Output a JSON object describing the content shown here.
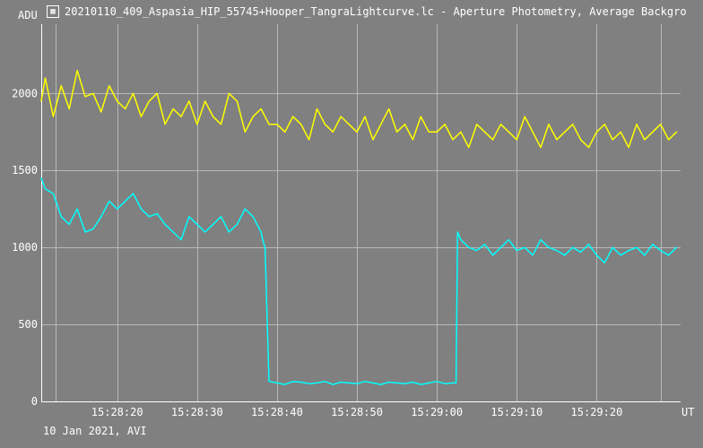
{
  "window": {
    "title": "20210110_409_Aspasia_HIP_55745+Hooper_TangraLightcurve.lc - Aperture Photometry, Average Backgro",
    "icon": "tangra-app-icon"
  },
  "footer": {
    "date_label": "10 Jan 2021, AVI"
  },
  "chart_data": {
    "type": "line",
    "title": "",
    "ylabel": "ADU",
    "xlabel": "UT",
    "ylim": [
      0,
      2450
    ],
    "xlim": [
      "15:28:10.5",
      "15:29:30.5"
    ],
    "y_ticks": [
      0,
      500,
      1000,
      1500,
      2000
    ],
    "y_tick_labels": [
      "0",
      "500",
      "1000",
      "1500",
      "2000"
    ],
    "x_ticks": [
      "15:28:20",
      "15:28:30",
      "15:28:40",
      "15:28:50",
      "15:29:00",
      "15:29:10",
      "15:29:20"
    ],
    "x_tick_labels": [
      "15:28:20",
      "15:28:30",
      "15:28:40",
      "15:28:50",
      "15:29:00",
      "15:29:10",
      "15:29:20"
    ],
    "grid": true,
    "colors": {
      "background": "#808080",
      "grid": "#b8b8b8",
      "axis": "#ffffff",
      "text": "#ffffff"
    },
    "series": [
      {
        "color": "#ffff00",
        "x": [
          "15:28:10.5",
          "15:28:11",
          "15:28:12",
          "15:28:13",
          "15:28:14",
          "15:28:15",
          "15:28:16",
          "15:28:17",
          "15:28:18",
          "15:28:19",
          "15:28:20",
          "15:28:21",
          "15:28:22",
          "15:28:23",
          "15:28:24",
          "15:28:25",
          "15:28:26",
          "15:28:27",
          "15:28:28",
          "15:28:29",
          "15:28:30",
          "15:28:31",
          "15:28:32",
          "15:28:33",
          "15:28:34",
          "15:28:35",
          "15:28:36",
          "15:28:37",
          "15:28:38",
          "15:28:39",
          "15:28:40",
          "15:28:41",
          "15:28:42",
          "15:28:43",
          "15:28:44",
          "15:28:45",
          "15:28:46",
          "15:28:47",
          "15:28:48",
          "15:28:49",
          "15:28:50",
          "15:28:51",
          "15:28:52",
          "15:28:53",
          "15:28:54",
          "15:28:55",
          "15:28:56",
          "15:28:57",
          "15:28:58",
          "15:28:59",
          "15:29:00",
          "15:29:01",
          "15:29:02",
          "15:29:03",
          "15:29:04",
          "15:29:05",
          "15:29:06",
          "15:29:07",
          "15:29:08",
          "15:29:09",
          "15:29:10",
          "15:29:11",
          "15:29:12",
          "15:29:13",
          "15:29:14",
          "15:29:15",
          "15:29:16",
          "15:29:17",
          "15:29:18",
          "15:29:19",
          "15:29:20",
          "15:29:21",
          "15:29:22",
          "15:29:23",
          "15:29:24",
          "15:29:25",
          "15:29:26",
          "15:29:27",
          "15:29:28",
          "15:29:29",
          "15:29:30"
        ],
        "values": [
          1950,
          2100,
          1850,
          2050,
          1900,
          2150,
          1980,
          2000,
          1880,
          2050,
          1950,
          1900,
          2000,
          1850,
          1950,
          2000,
          1800,
          1900,
          1850,
          1950,
          1800,
          1950,
          1850,
          1800,
          2000,
          1950,
          1750,
          1850,
          1900,
          1800,
          1800,
          1750,
          1850,
          1800,
          1700,
          1900,
          1800,
          1750,
          1850,
          1800,
          1750,
          1850,
          1700,
          1800,
          1900,
          1750,
          1800,
          1700,
          1850,
          1750,
          1750,
          1800,
          1700,
          1750,
          1650,
          1800,
          1750,
          1700,
          1800,
          1750,
          1700,
          1850,
          1750,
          1650,
          1800,
          1700,
          1750,
          1800,
          1700,
          1650,
          1750,
          1800,
          1700,
          1750,
          1650,
          1800,
          1700,
          1750,
          1800,
          1700,
          1750
        ]
      },
      {
        "color": "#00ffff",
        "x": [
          "15:28:10.5",
          "15:28:11",
          "15:28:12",
          "15:28:13",
          "15:28:14",
          "15:28:15",
          "15:28:16",
          "15:28:17",
          "15:28:18",
          "15:28:19",
          "15:28:20",
          "15:28:21",
          "15:28:22",
          "15:28:23",
          "15:28:24",
          "15:28:25",
          "15:28:26",
          "15:28:27",
          "15:28:28",
          "15:28:29",
          "15:28:30",
          "15:28:31",
          "15:28:32",
          "15:28:33",
          "15:28:34",
          "15:28:35",
          "15:28:36",
          "15:28:37",
          "15:28:38",
          "15:28:38.2",
          "15:28:38.5",
          "15:28:39",
          "15:28:40",
          "15:28:41",
          "15:28:42",
          "15:28:43",
          "15:28:44",
          "15:28:45",
          "15:28:46",
          "15:28:47",
          "15:28:48",
          "15:28:49",
          "15:28:50",
          "15:28:51",
          "15:28:52",
          "15:28:53",
          "15:28:54",
          "15:28:55",
          "15:28:56",
          "15:28:57",
          "15:28:58",
          "15:28:59",
          "15:29:00",
          "15:29:01",
          "15:29:02",
          "15:29:02.4",
          "15:29:02.6",
          "15:29:03",
          "15:29:04",
          "15:29:05",
          "15:29:06",
          "15:29:07",
          "15:29:08",
          "15:29:09",
          "15:29:10",
          "15:29:11",
          "15:29:12",
          "15:29:13",
          "15:29:14",
          "15:29:15",
          "15:29:16",
          "15:29:17",
          "15:29:18",
          "15:29:19",
          "15:29:20",
          "15:29:21",
          "15:29:22",
          "15:29:23",
          "15:29:24",
          "15:29:25",
          "15:29:26",
          "15:29:27",
          "15:29:28",
          "15:29:29",
          "15:29:30"
        ],
        "values": [
          1450,
          1380,
          1350,
          1200,
          1150,
          1250,
          1100,
          1120,
          1200,
          1300,
          1250,
          1300,
          1350,
          1250,
          1200,
          1220,
          1150,
          1100,
          1050,
          1200,
          1150,
          1100,
          1150,
          1200,
          1100,
          1150,
          1250,
          1200,
          1100,
          1050,
          1000,
          130,
          120,
          110,
          130,
          125,
          115,
          120,
          130,
          110,
          125,
          120,
          115,
          130,
          120,
          110,
          125,
          120,
          115,
          125,
          110,
          120,
          130,
          115,
          120,
          120,
          1100,
          1050,
          1000,
          980,
          1020,
          950,
          1000,
          1050,
          980,
          1000,
          950,
          1050,
          1000,
          980,
          950,
          1000,
          970,
          1020,
          950,
          900,
          1000,
          950,
          980,
          1000,
          950,
          1020,
          980,
          950,
          1000
        ]
      }
    ]
  }
}
